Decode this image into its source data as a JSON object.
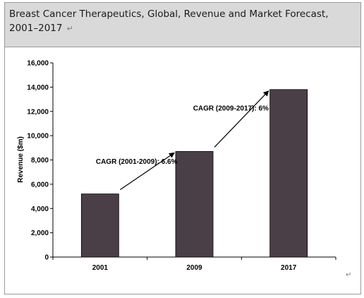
{
  "header": {
    "title": "Breast Cancer Therapeutics, Global, Revenue and Market Forecast, 2001–2017",
    "mark": "↵"
  },
  "chart_data": {
    "type": "bar",
    "categories": [
      "2001",
      "2009",
      "2017"
    ],
    "values": [
      5200,
      8700,
      13800
    ],
    "ylabel": "Revenue ($m)",
    "xlabel": "",
    "ylim": [
      0,
      16000
    ],
    "yticks": [
      "0",
      "2,000",
      "4,000",
      "6,000",
      "8,000",
      "10,000",
      "12,000",
      "14,000",
      "16,000"
    ],
    "bar_color": "#4a3f47",
    "grid": false,
    "annotations": [
      {
        "text": "CAGR (2001-2009):  6.6%",
        "from": "2001",
        "to": "2009"
      },
      {
        "text": "CAGR (2009-2017):  6%",
        "from": "2009",
        "to": "2017"
      }
    ]
  },
  "footer_mark": "↵"
}
